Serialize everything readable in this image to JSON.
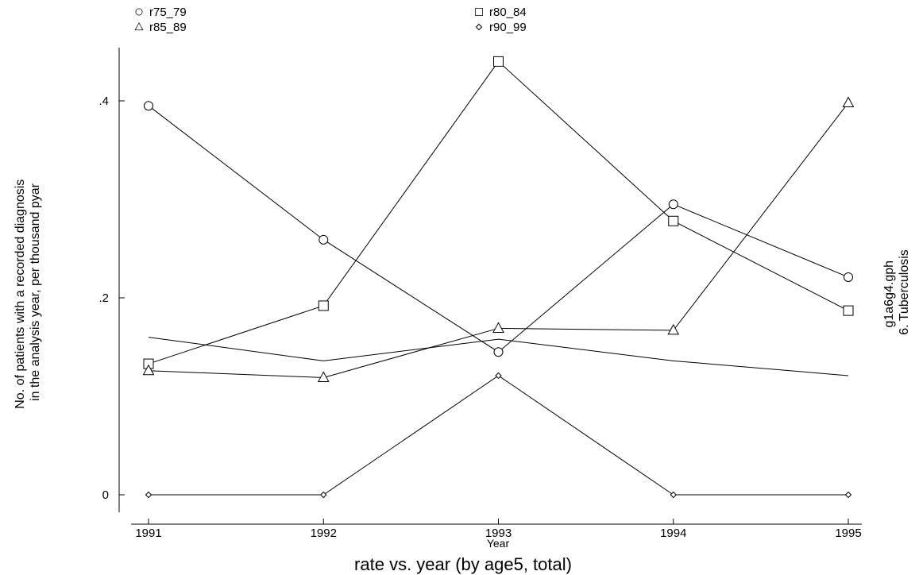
{
  "chart_data": {
    "type": "line",
    "title": "",
    "caption": "rate vs. year (by age5, total)",
    "side_text": [
      "g1a6g4.gph",
      "6.  Tuberculosis"
    ],
    "xlabel": "Year",
    "ylabel_lines": [
      "No. of patients with a recorded diagnosis",
      "in the analysis year, per thousand pyar"
    ],
    "x": [
      1991,
      1992,
      1993,
      1994,
      1995
    ],
    "x_ticks": [
      "1991",
      "1992",
      "1993",
      "1994",
      "1995"
    ],
    "xlim": [
      1991,
      1995
    ],
    "y_ticks": [
      {
        "value": 0,
        "label": "0"
      },
      {
        "value": 0.2,
        "label": ".2"
      },
      {
        "value": 0.4,
        "label": ".4"
      }
    ],
    "ylim": [
      0,
      0.44
    ],
    "grid": false,
    "legend_position": "top",
    "series": [
      {
        "name": "r75_79",
        "marker": "circle",
        "values": [
          0.395,
          0.259,
          0.145,
          0.295,
          0.221
        ]
      },
      {
        "name": "r80_84",
        "marker": "square",
        "values": [
          0.133,
          0.192,
          0.44,
          0.278,
          0.187
        ]
      },
      {
        "name": "r85_89",
        "marker": "triangle",
        "values": [
          0.126,
          0.119,
          0.169,
          0.167,
          0.398
        ]
      },
      {
        "name": "r90_99",
        "marker": "diamond",
        "values": [
          0,
          0,
          0.121,
          0,
          0
        ]
      },
      {
        "name": "",
        "marker": "none",
        "values": [
          0.16,
          0.136,
          0.158,
          0.136,
          0.121
        ]
      }
    ]
  }
}
